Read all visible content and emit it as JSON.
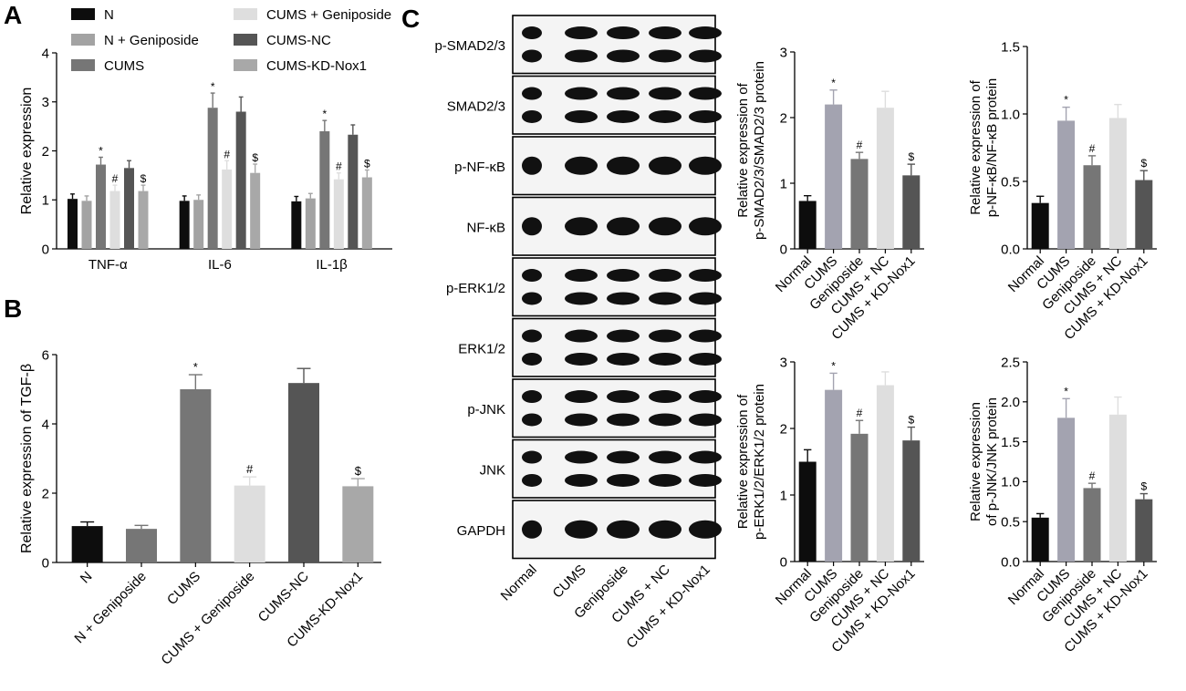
{
  "panel_letters": [
    "A",
    "B",
    "C"
  ],
  "chart_data": [
    {
      "id": "A",
      "type": "bar",
      "ylabel": "Relative expression",
      "xlabel": "",
      "ylim": [
        0,
        4
      ],
      "yticks": [
        0,
        1,
        2,
        3,
        4
      ],
      "categories": [
        "TNF-α",
        "IL-6",
        "IL-1β"
      ],
      "legend_position": "top",
      "series": [
        {
          "name": "N",
          "color": "#0d0d0d",
          "values": [
            1.02,
            0.98,
            0.97
          ],
          "errors": [
            0.1,
            0.1,
            0.1
          ],
          "marks": [
            "",
            "",
            ""
          ]
        },
        {
          "name": "N + Geniposide",
          "color": "#a3a3a3",
          "values": [
            0.98,
            1.0,
            1.03
          ],
          "errors": [
            0.1,
            0.1,
            0.1
          ],
          "marks": [
            "",
            "",
            ""
          ]
        },
        {
          "name": "CUMS",
          "color": "#767676",
          "values": [
            1.72,
            2.88,
            2.4
          ],
          "errors": [
            0.15,
            0.3,
            0.22
          ],
          "marks": [
            "*",
            "*",
            "*"
          ]
        },
        {
          "name": "CUMS + Geniposide",
          "color": "#dedede",
          "values": [
            1.18,
            1.62,
            1.42
          ],
          "errors": [
            0.12,
            0.18,
            0.13
          ],
          "marks": [
            "#",
            "#",
            "#"
          ]
        },
        {
          "name": "CUMS-NC",
          "color": "#555555",
          "values": [
            1.65,
            2.8,
            2.33
          ],
          "errors": [
            0.15,
            0.3,
            0.2
          ],
          "marks": [
            "",
            "",
            ""
          ]
        },
        {
          "name": "CUMS-KD-Nox1",
          "color": "#a8a8a8",
          "values": [
            1.18,
            1.55,
            1.46
          ],
          "errors": [
            0.12,
            0.18,
            0.15
          ],
          "marks": [
            "$",
            "$",
            "$"
          ]
        }
      ]
    },
    {
      "id": "B",
      "type": "bar",
      "ylabel": "Relative expression of TGF-β",
      "xlabel": "",
      "ylim": [
        0,
        6
      ],
      "yticks": [
        0,
        2,
        4,
        6
      ],
      "categories": [
        "N",
        "N + Geniposide",
        "CUMS",
        "CUMS + Geniposide",
        "CUMS-NC",
        "CUMS-KD-Nox1"
      ],
      "values": [
        1.05,
        0.97,
        5.0,
        2.22,
        5.18,
        2.2
      ],
      "errors": [
        0.12,
        0.1,
        0.42,
        0.25,
        0.42,
        0.22
      ],
      "marks": [
        "",
        "",
        "*",
        "#",
        "",
        "$"
      ],
      "colors": [
        "#0d0d0d",
        "#767676",
        "#767676",
        "#dedede",
        "#555555",
        "#a8a8a8"
      ]
    },
    {
      "id": "C1",
      "type": "bar",
      "ylabel_lines": [
        "Relative expression of",
        "p-SMAD2/3/SMAD2/3 protein"
      ],
      "xlabel": "",
      "ylim": [
        0,
        3
      ],
      "yticks": [
        0,
        1,
        2,
        3
      ],
      "categories": [
        "Normal",
        "CUMS",
        "Geniposide",
        "CUMS + NC",
        "CUMS + KD-Nox1"
      ],
      "values": [
        0.73,
        2.2,
        1.37,
        2.15,
        1.12
      ],
      "errors": [
        0.08,
        0.22,
        0.1,
        0.25,
        0.17
      ],
      "marks": [
        "",
        "*",
        "#",
        "",
        "$"
      ],
      "colors": [
        "#0d0d0d",
        "#a3a3b0",
        "#767676",
        "#dedede",
        "#555555"
      ]
    },
    {
      "id": "C2",
      "type": "bar",
      "ylabel_lines": [
        "Relative expression of",
        "p-NF-κB/NF-κB protein"
      ],
      "xlabel": "",
      "ylim": [
        0,
        1.5
      ],
      "yticks": [
        "0.0",
        "0.5",
        "1.0",
        "1.5"
      ],
      "categories": [
        "Normal",
        "CUMS",
        "Geniposide",
        "CUMS + NC",
        "CUMS + KD-Nox1"
      ],
      "values": [
        0.34,
        0.95,
        0.62,
        0.97,
        0.51
      ],
      "errors": [
        0.05,
        0.1,
        0.07,
        0.1,
        0.07
      ],
      "marks": [
        "",
        "*",
        "#",
        "",
        "$"
      ],
      "colors": [
        "#0d0d0d",
        "#a3a3b0",
        "#767676",
        "#dedede",
        "#555555"
      ]
    },
    {
      "id": "C3",
      "type": "bar",
      "ylabel_lines": [
        "Relative expression of",
        "p-ERK1/2/ERK1/2 protein"
      ],
      "xlabel": "",
      "ylim": [
        0,
        3
      ],
      "yticks": [
        0,
        1,
        2,
        3
      ],
      "categories": [
        "Normal",
        "CUMS",
        "Geniposide",
        "CUMS + NC",
        "CUMS + KD-Nox1"
      ],
      "values": [
        1.5,
        2.58,
        1.92,
        2.65,
        1.82
      ],
      "errors": [
        0.18,
        0.25,
        0.2,
        0.2,
        0.2
      ],
      "marks": [
        "",
        "*",
        "#",
        "",
        "$"
      ],
      "colors": [
        "#0d0d0d",
        "#a3a3b0",
        "#767676",
        "#dedede",
        "#555555"
      ]
    },
    {
      "id": "C4",
      "type": "bar",
      "ylabel_lines": [
        "Relative expression",
        "of p-JNK/JNK protein"
      ],
      "xlabel": "",
      "ylim": [
        0,
        2.5
      ],
      "yticks": [
        "0.0",
        "0.5",
        "1.0",
        "1.5",
        "2.0",
        "2.5"
      ],
      "categories": [
        "Normal",
        "CUMS",
        "Geniposide",
        "CUMS + NC",
        "CUMS + KD-Nox1"
      ],
      "values": [
        0.55,
        1.8,
        0.92,
        1.84,
        0.78
      ],
      "errors": [
        0.05,
        0.24,
        0.06,
        0.22,
        0.07
      ],
      "marks": [
        "",
        "*",
        "#",
        "",
        "$"
      ],
      "colors": [
        "#0d0d0d",
        "#a3a3b0",
        "#767676",
        "#dedede",
        "#555555"
      ]
    }
  ],
  "western_blot": {
    "rows": [
      {
        "label": "p-SMAD2/3",
        "band_pattern": "double"
      },
      {
        "label": "SMAD2/3",
        "band_pattern": "double"
      },
      {
        "label": "p-NF-κB",
        "band_pattern": "single"
      },
      {
        "label": "NF-κB",
        "band_pattern": "single"
      },
      {
        "label": "p-ERK1/2",
        "band_pattern": "double"
      },
      {
        "label": "ERK1/2",
        "band_pattern": "double"
      },
      {
        "label": "p-JNK",
        "band_pattern": "double"
      },
      {
        "label": "JNK",
        "band_pattern": "double"
      },
      {
        "label": "GAPDH",
        "band_pattern": "single"
      }
    ],
    "lanes": [
      "Normal",
      "CUMS",
      "Geniposide",
      "CUMS + NC",
      "CUMS + KD-Nox1"
    ]
  }
}
